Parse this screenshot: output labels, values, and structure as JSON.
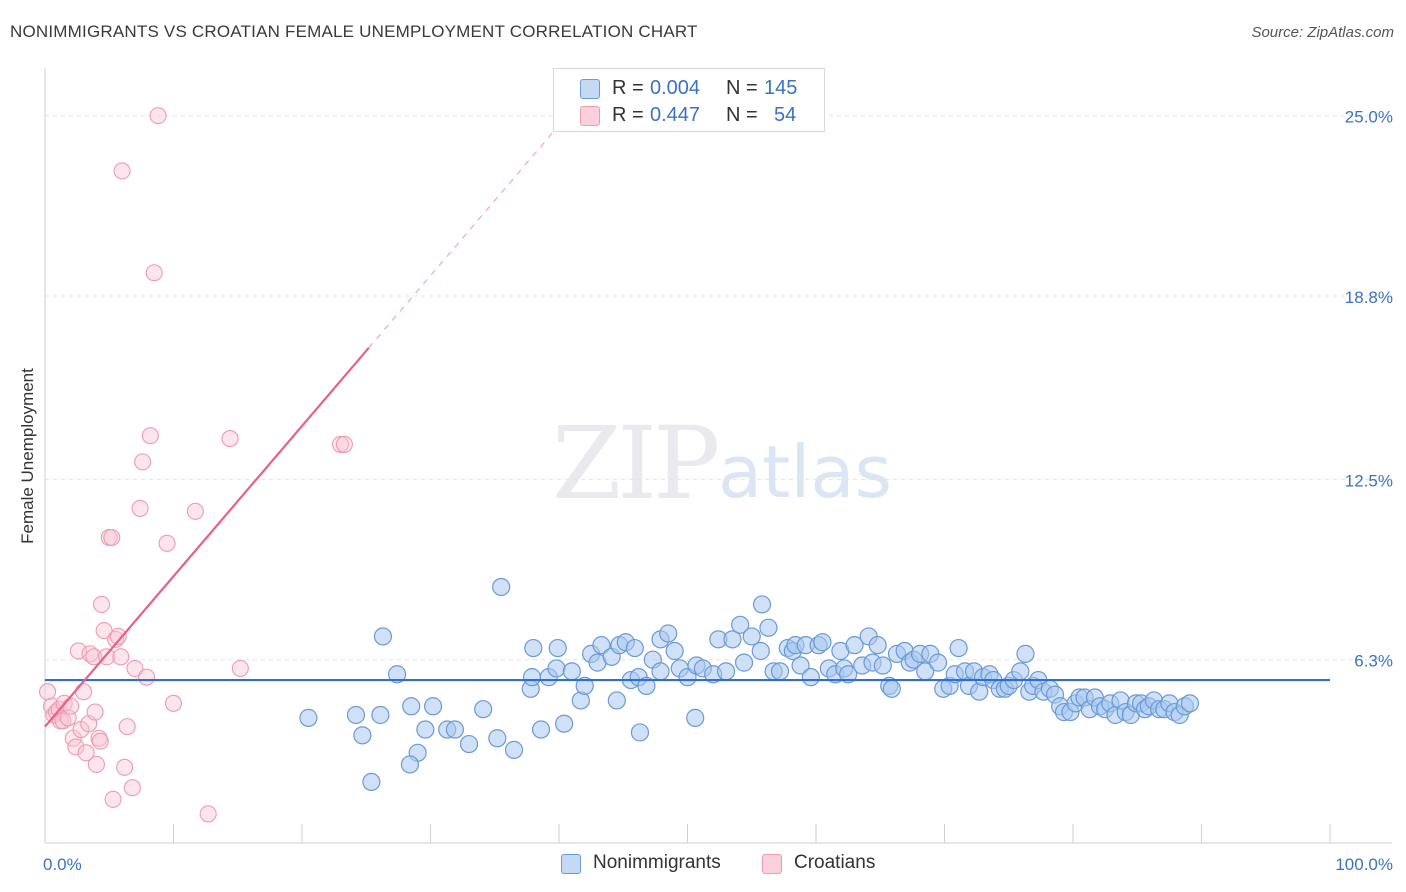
{
  "title": "NONIMMIGRANTS VS CROATIAN FEMALE UNEMPLOYMENT CORRELATION CHART",
  "source": "Source: ZipAtlas.com",
  "watermark": {
    "zip": "ZIP",
    "atlas": "atlas"
  },
  "legend": {
    "items": [
      {
        "r_label": "R =",
        "r_value": "0.004",
        "n_label": "N =",
        "n_value": "145",
        "color": "#a9c8f0"
      },
      {
        "r_label": "R =",
        "r_value": "0.447",
        "n_label": "N =",
        "n_value": "54",
        "color": "#f7b7c9"
      }
    ]
  },
  "bottom_legend": {
    "series1": "Nonimmigrants",
    "series2": "Croatians"
  },
  "colors": {
    "blue_fill": "#a9c8f0",
    "blue_stroke": "#6a9ad6",
    "blue_line": "#2f6fcf",
    "pink_fill": "#f9c6d4",
    "pink_stroke": "#ee9ab2",
    "pink_line": "#e8608a",
    "axis_text": "#3b73c4"
  },
  "chart_data": {
    "type": "scatter",
    "title": "NONIMMIGRANTS VS CROATIAN FEMALE UNEMPLOYMENT CORRELATION CHART",
    "xlabel": "",
    "ylabel": "Female Unemployment",
    "xlim": [
      0,
      100
    ],
    "ylim": [
      0,
      26.5
    ],
    "x_tick_labels": [
      "0.0%",
      "100.0%"
    ],
    "y_ticks": [
      6.3,
      12.5,
      18.8,
      25.0
    ],
    "y_tick_labels": [
      "6.3%",
      "12.5%",
      "18.8%",
      "25.0%"
    ],
    "series": [
      {
        "name": "Nonimmigrants",
        "trend": {
          "x": [
            0,
            100
          ],
          "y": [
            5.6,
            5.6
          ],
          "solid_to": 100
        },
        "points": [
          [
            20.5,
            4.3
          ],
          [
            24.2,
            4.4
          ],
          [
            24.7,
            3.7
          ],
          [
            26.1,
            4.4
          ],
          [
            26.3,
            7.1
          ],
          [
            27.4,
            5.8
          ],
          [
            29.0,
            3.1
          ],
          [
            28.4,
            2.7
          ],
          [
            25.4,
            2.1
          ],
          [
            28.5,
            4.7
          ],
          [
            29.6,
            3.9
          ],
          [
            30.2,
            4.7
          ],
          [
            31.3,
            3.9
          ],
          [
            31.9,
            3.9
          ],
          [
            33.0,
            3.4
          ],
          [
            34.1,
            4.6
          ],
          [
            35.2,
            3.6
          ],
          [
            36.5,
            3.2
          ],
          [
            35.5,
            8.8
          ],
          [
            37.8,
            5.3
          ],
          [
            37.9,
            5.7
          ],
          [
            38.0,
            6.7
          ],
          [
            38.6,
            3.9
          ],
          [
            39.2,
            5.7
          ],
          [
            39.8,
            6.0
          ],
          [
            39.9,
            6.7
          ],
          [
            40.4,
            4.1
          ],
          [
            41.0,
            5.9
          ],
          [
            41.7,
            4.9
          ],
          [
            42.0,
            5.4
          ],
          [
            42.5,
            6.5
          ],
          [
            43.0,
            6.2
          ],
          [
            43.3,
            6.8
          ],
          [
            44.1,
            6.4
          ],
          [
            44.5,
            4.9
          ],
          [
            44.7,
            6.8
          ],
          [
            45.2,
            6.9
          ],
          [
            45.6,
            5.6
          ],
          [
            45.9,
            6.7
          ],
          [
            46.2,
            5.7
          ],
          [
            46.3,
            3.8
          ],
          [
            46.8,
            5.4
          ],
          [
            47.3,
            6.3
          ],
          [
            47.9,
            5.9
          ],
          [
            47.9,
            7.0
          ],
          [
            48.5,
            7.2
          ],
          [
            49.0,
            6.6
          ],
          [
            49.4,
            6.0
          ],
          [
            50.0,
            5.7
          ],
          [
            50.6,
            4.3
          ],
          [
            50.7,
            6.1
          ],
          [
            51.2,
            6.0
          ],
          [
            52.0,
            5.8
          ],
          [
            52.4,
            7.0
          ],
          [
            53.0,
            5.9
          ],
          [
            53.5,
            7.0
          ],
          [
            54.1,
            7.5
          ],
          [
            54.4,
            6.2
          ],
          [
            55.0,
            7.1
          ],
          [
            55.7,
            6.6
          ],
          [
            55.8,
            8.2
          ],
          [
            56.3,
            7.4
          ],
          [
            56.7,
            5.9
          ],
          [
            57.2,
            5.9
          ],
          [
            57.8,
            6.7
          ],
          [
            58.2,
            6.6
          ],
          [
            58.4,
            6.8
          ],
          [
            58.8,
            6.1
          ],
          [
            59.2,
            6.8
          ],
          [
            59.6,
            5.7
          ],
          [
            60.2,
            6.8
          ],
          [
            60.5,
            6.9
          ],
          [
            61.0,
            6.0
          ],
          [
            61.5,
            5.8
          ],
          [
            61.9,
            6.6
          ],
          [
            62.2,
            6.0
          ],
          [
            62.5,
            5.8
          ],
          [
            63.0,
            6.8
          ],
          [
            63.6,
            6.1
          ],
          [
            64.1,
            7.1
          ],
          [
            64.4,
            6.2
          ],
          [
            64.8,
            6.8
          ],
          [
            65.2,
            6.1
          ],
          [
            65.7,
            5.4
          ],
          [
            65.9,
            5.3
          ],
          [
            66.3,
            6.5
          ],
          [
            66.9,
            6.6
          ],
          [
            67.3,
            6.2
          ],
          [
            67.6,
            6.3
          ],
          [
            68.1,
            6.5
          ],
          [
            68.5,
            5.9
          ],
          [
            68.9,
            6.5
          ],
          [
            69.5,
            6.2
          ],
          [
            69.9,
            5.3
          ],
          [
            70.4,
            5.4
          ],
          [
            70.8,
            5.8
          ],
          [
            71.1,
            6.7
          ],
          [
            71.6,
            5.9
          ],
          [
            71.9,
            5.4
          ],
          [
            72.3,
            5.9
          ],
          [
            72.7,
            5.2
          ],
          [
            73.0,
            5.7
          ],
          [
            73.5,
            5.8
          ],
          [
            73.8,
            5.6
          ],
          [
            74.3,
            5.3
          ],
          [
            74.7,
            5.3
          ],
          [
            75.0,
            5.4
          ],
          [
            75.4,
            5.6
          ],
          [
            75.9,
            5.9
          ],
          [
            76.3,
            6.5
          ],
          [
            76.6,
            5.2
          ],
          [
            76.9,
            5.4
          ],
          [
            77.3,
            5.6
          ],
          [
            77.7,
            5.2
          ],
          [
            78.2,
            5.3
          ],
          [
            78.6,
            5.1
          ],
          [
            79.0,
            4.7
          ],
          [
            79.3,
            4.5
          ],
          [
            79.8,
            4.5
          ],
          [
            80.2,
            4.8
          ],
          [
            80.5,
            5.0
          ],
          [
            80.9,
            5.0
          ],
          [
            81.3,
            4.6
          ],
          [
            81.7,
            5.0
          ],
          [
            82.1,
            4.7
          ],
          [
            82.5,
            4.6
          ],
          [
            82.9,
            4.8
          ],
          [
            83.3,
            4.4
          ],
          [
            83.7,
            4.9
          ],
          [
            84.1,
            4.5
          ],
          [
            84.5,
            4.4
          ],
          [
            84.9,
            4.8
          ],
          [
            85.3,
            4.8
          ],
          [
            85.6,
            4.6
          ],
          [
            85.9,
            4.7
          ],
          [
            86.3,
            4.9
          ],
          [
            86.7,
            4.6
          ],
          [
            87.1,
            4.6
          ],
          [
            87.5,
            4.8
          ],
          [
            87.9,
            4.5
          ],
          [
            88.3,
            4.4
          ],
          [
            88.7,
            4.7
          ],
          [
            89.1,
            4.8
          ]
        ]
      },
      {
        "name": "Croatians",
        "trend": {
          "x": [
            0,
            42
          ],
          "y": [
            4.0,
            25.7
          ],
          "solid_to": 25.2
        },
        "points": [
          [
            0.2,
            5.2
          ],
          [
            0.5,
            4.7
          ],
          [
            0.7,
            4.4
          ],
          [
            0.9,
            4.5
          ],
          [
            1.1,
            4.6
          ],
          [
            1.2,
            4.2
          ],
          [
            1.4,
            4.2
          ],
          [
            1.5,
            4.8
          ],
          [
            1.8,
            4.3
          ],
          [
            2.0,
            4.7
          ],
          [
            2.2,
            3.6
          ],
          [
            2.4,
            3.3
          ],
          [
            2.6,
            6.6
          ],
          [
            2.8,
            3.9
          ],
          [
            3.0,
            5.2
          ],
          [
            3.2,
            3.1
          ],
          [
            3.4,
            4.1
          ],
          [
            3.5,
            6.5
          ],
          [
            3.8,
            6.4
          ],
          [
            3.9,
            4.5
          ],
          [
            4.0,
            2.7
          ],
          [
            4.2,
            3.6
          ],
          [
            4.3,
            3.5
          ],
          [
            4.4,
            8.2
          ],
          [
            4.6,
            7.3
          ],
          [
            4.8,
            6.4
          ],
          [
            5.0,
            10.5
          ],
          [
            5.2,
            10.5
          ],
          [
            5.3,
            1.5
          ],
          [
            5.5,
            7.0
          ],
          [
            5.7,
            7.1
          ],
          [
            5.9,
            6.4
          ],
          [
            6.0,
            23.1
          ],
          [
            6.2,
            2.6
          ],
          [
            6.4,
            4.0
          ],
          [
            6.8,
            1.9
          ],
          [
            7.0,
            6.0
          ],
          [
            7.4,
            11.5
          ],
          [
            7.6,
            13.1
          ],
          [
            7.9,
            5.7
          ],
          [
            8.2,
            14.0
          ],
          [
            8.5,
            19.6
          ],
          [
            8.8,
            25.0
          ],
          [
            9.5,
            10.3
          ],
          [
            10.0,
            4.8
          ],
          [
            11.7,
            11.4
          ],
          [
            12.7,
            1.0
          ],
          [
            14.4,
            13.9
          ],
          [
            15.2,
            6.0
          ],
          [
            23.0,
            13.7
          ],
          [
            23.3,
            13.7
          ]
        ]
      }
    ]
  }
}
